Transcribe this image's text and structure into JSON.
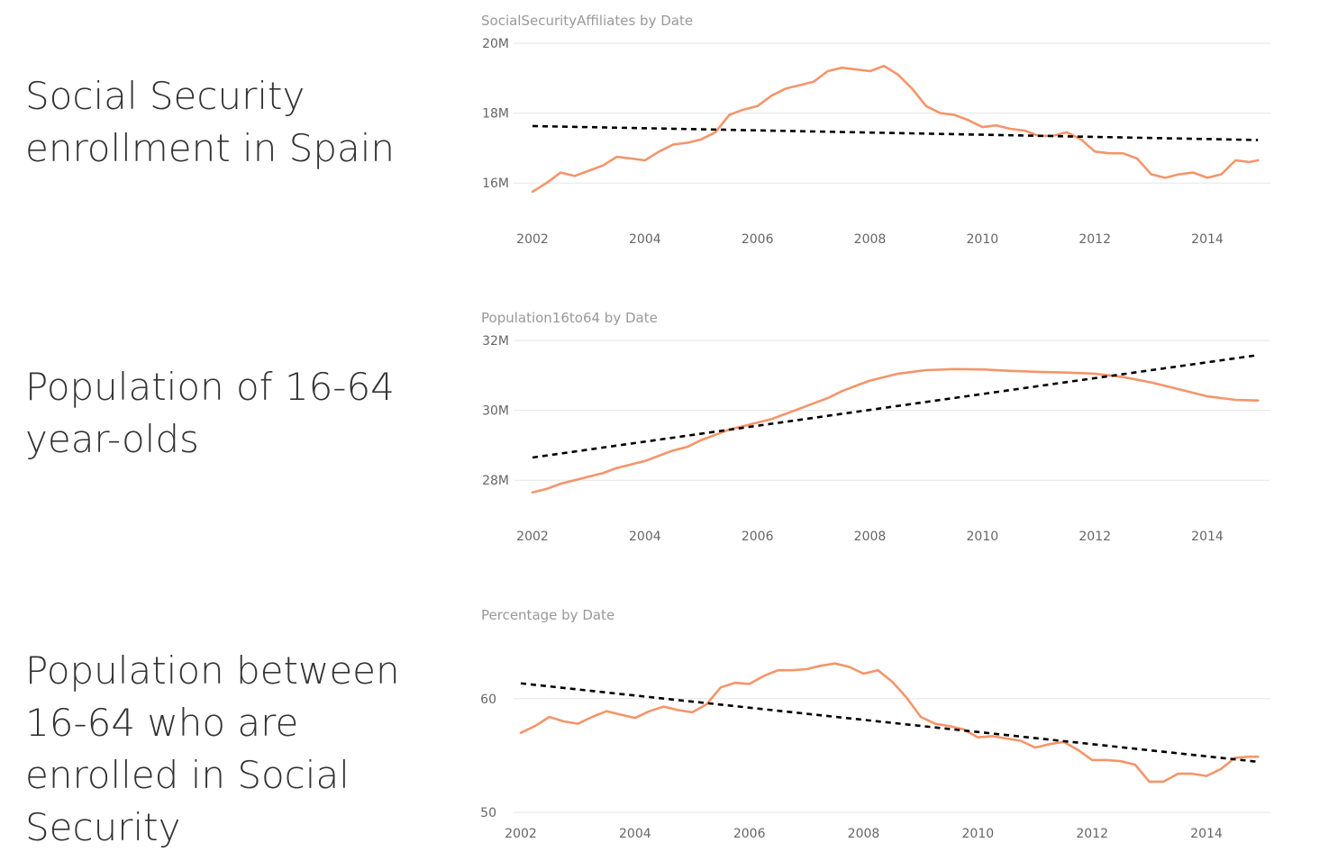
{
  "captions": [
    "Social Security enrollment in Spain",
    "Population of 16-64 year-olds",
    "Population between 16-64 who are enrolled in Social Security"
  ],
  "colors": {
    "series": "#f4956a",
    "trend": "#000000",
    "grid": "#e6e6e6"
  },
  "chart_data": [
    {
      "type": "line",
      "title": "SocialSecurityAffiliates by Date",
      "xlim": [
        2002,
        2015.2
      ],
      "ylim": [
        15000000,
        20000000
      ],
      "y_ticks": [
        16000000,
        18000000,
        20000000
      ],
      "y_tick_labels": [
        "16M",
        "18M",
        "20M"
      ],
      "x_ticks": [
        2002,
        2004,
        2006,
        2008,
        2010,
        2012,
        2014
      ],
      "x_tick_labels": [
        "2002",
        "2004",
        "2006",
        "2008",
        "2010",
        "2012",
        "2014"
      ],
      "grid": true,
      "series": [
        {
          "x": [
            2002.0,
            2002.25,
            2002.5,
            2002.75,
            2003.0,
            2003.25,
            2003.5,
            2003.75,
            2004.0,
            2004.25,
            2004.5,
            2004.75,
            2005.0,
            2005.25,
            2005.5,
            2005.75,
            2006.0,
            2006.25,
            2006.5,
            2006.75,
            2007.0,
            2007.25,
            2007.5,
            2007.75,
            2008.0,
            2008.25,
            2008.5,
            2008.75,
            2009.0,
            2009.25,
            2009.5,
            2009.75,
            2010.0,
            2010.25,
            2010.5,
            2010.75,
            2011.0,
            2011.25,
            2011.5,
            2011.75,
            2012.0,
            2012.25,
            2012.5,
            2012.75,
            2013.0,
            2013.25,
            2013.5,
            2013.75,
            2014.0,
            2014.25,
            2014.5,
            2014.75,
            2014.9
          ],
          "y": [
            15750000,
            16000000,
            16300000,
            16200000,
            16350000,
            16500000,
            16750000,
            16700000,
            16650000,
            16900000,
            17100000,
            17150000,
            17250000,
            17450000,
            17950000,
            18100000,
            18200000,
            18500000,
            18700000,
            18800000,
            18900000,
            19200000,
            19300000,
            19250000,
            19200000,
            19350000,
            19100000,
            18700000,
            18200000,
            18000000,
            17950000,
            17800000,
            17600000,
            17650000,
            17550000,
            17500000,
            17350000,
            17350000,
            17450000,
            17250000,
            16900000,
            16850000,
            16850000,
            16700000,
            16250000,
            16150000,
            16250000,
            16300000,
            16150000,
            16250000,
            16650000,
            16600000,
            16650000
          ]
        }
      ],
      "trend": {
        "x": [
          2002.0,
          2014.9
        ],
        "y": [
          17630000,
          17230000
        ]
      }
    },
    {
      "type": "line",
      "title": "Population16to64 by Date",
      "xlim": [
        2002,
        2015.2
      ],
      "ylim": [
        27000000,
        32000000
      ],
      "y_ticks": [
        28000000,
        30000000,
        32000000
      ],
      "y_tick_labels": [
        "28M",
        "30M",
        "32M"
      ],
      "x_ticks": [
        2002,
        2004,
        2006,
        2008,
        2010,
        2012,
        2014
      ],
      "x_tick_labels": [
        "2002",
        "2004",
        "2006",
        "2008",
        "2010",
        "2012",
        "2014"
      ],
      "grid": true,
      "series": [
        {
          "x": [
            2002.0,
            2002.25,
            2002.5,
            2002.75,
            2003.0,
            2003.25,
            2003.5,
            2003.75,
            2004.0,
            2004.25,
            2004.5,
            2004.75,
            2005.0,
            2005.25,
            2005.5,
            2005.75,
            2006.0,
            2006.25,
            2006.5,
            2006.75,
            2007.0,
            2007.25,
            2007.5,
            2007.75,
            2008.0,
            2008.25,
            2008.5,
            2008.75,
            2009.0,
            2009.5,
            2010.0,
            2010.5,
            2011.0,
            2011.5,
            2012.0,
            2012.5,
            2013.0,
            2013.5,
            2014.0,
            2014.5,
            2014.9
          ],
          "y": [
            27650000,
            27750000,
            27900000,
            28000000,
            28100000,
            28200000,
            28350000,
            28450000,
            28550000,
            28700000,
            28850000,
            28950000,
            29150000,
            29300000,
            29450000,
            29550000,
            29650000,
            29750000,
            29900000,
            30050000,
            30200000,
            30350000,
            30550000,
            30700000,
            30850000,
            30950000,
            31050000,
            31100000,
            31150000,
            31180000,
            31170000,
            31130000,
            31100000,
            31080000,
            31050000,
            30950000,
            30800000,
            30600000,
            30400000,
            30300000,
            30280000
          ]
        }
      ],
      "trend": {
        "x": [
          2002.0,
          2014.9
        ],
        "y": [
          28650000,
          31580000
        ]
      }
    },
    {
      "type": "line",
      "title": "Percentage by Date",
      "xlim": [
        2002,
        2015.2
      ],
      "ylim": [
        50,
        64.5
      ],
      "y_ticks": [
        50,
        60
      ],
      "y_tick_labels": [
        "50",
        "60"
      ],
      "x_ticks": [
        2002,
        2004,
        2006,
        2008,
        2010,
        2012,
        2014
      ],
      "x_tick_labels": [
        "2002",
        "2004",
        "2006",
        "2008",
        "2010",
        "2012",
        "2014"
      ],
      "grid": true,
      "series": [
        {
          "x": [
            2002.0,
            2002.25,
            2002.5,
            2002.75,
            2003.0,
            2003.25,
            2003.5,
            2003.75,
            2004.0,
            2004.25,
            2004.5,
            2004.75,
            2005.0,
            2005.25,
            2005.5,
            2005.75,
            2006.0,
            2006.25,
            2006.5,
            2006.75,
            2007.0,
            2007.25,
            2007.5,
            2007.75,
            2008.0,
            2008.25,
            2008.5,
            2008.75,
            2009.0,
            2009.25,
            2009.5,
            2009.75,
            2010.0,
            2010.25,
            2010.5,
            2010.75,
            2011.0,
            2011.25,
            2011.5,
            2011.75,
            2012.0,
            2012.25,
            2012.5,
            2012.75,
            2013.0,
            2013.25,
            2013.5,
            2013.75,
            2014.0,
            2014.25,
            2014.5,
            2014.75,
            2014.9
          ],
          "y": [
            57.0,
            57.6,
            58.4,
            58.0,
            57.8,
            58.4,
            58.9,
            58.6,
            58.3,
            58.9,
            59.3,
            59.0,
            58.8,
            59.5,
            61.0,
            61.4,
            61.3,
            62.0,
            62.5,
            62.5,
            62.6,
            62.9,
            63.1,
            62.8,
            62.2,
            62.5,
            61.5,
            60.1,
            58.4,
            57.8,
            57.6,
            57.3,
            56.6,
            56.7,
            56.5,
            56.3,
            55.7,
            56.0,
            56.2,
            55.5,
            54.6,
            54.6,
            54.5,
            54.2,
            52.7,
            52.7,
            53.4,
            53.4,
            53.2,
            53.8,
            54.8,
            54.9,
            54.9
          ]
        }
      ],
      "trend": {
        "x": [
          2002.0,
          2014.9
        ],
        "y": [
          61.35,
          54.45
        ]
      }
    }
  ]
}
